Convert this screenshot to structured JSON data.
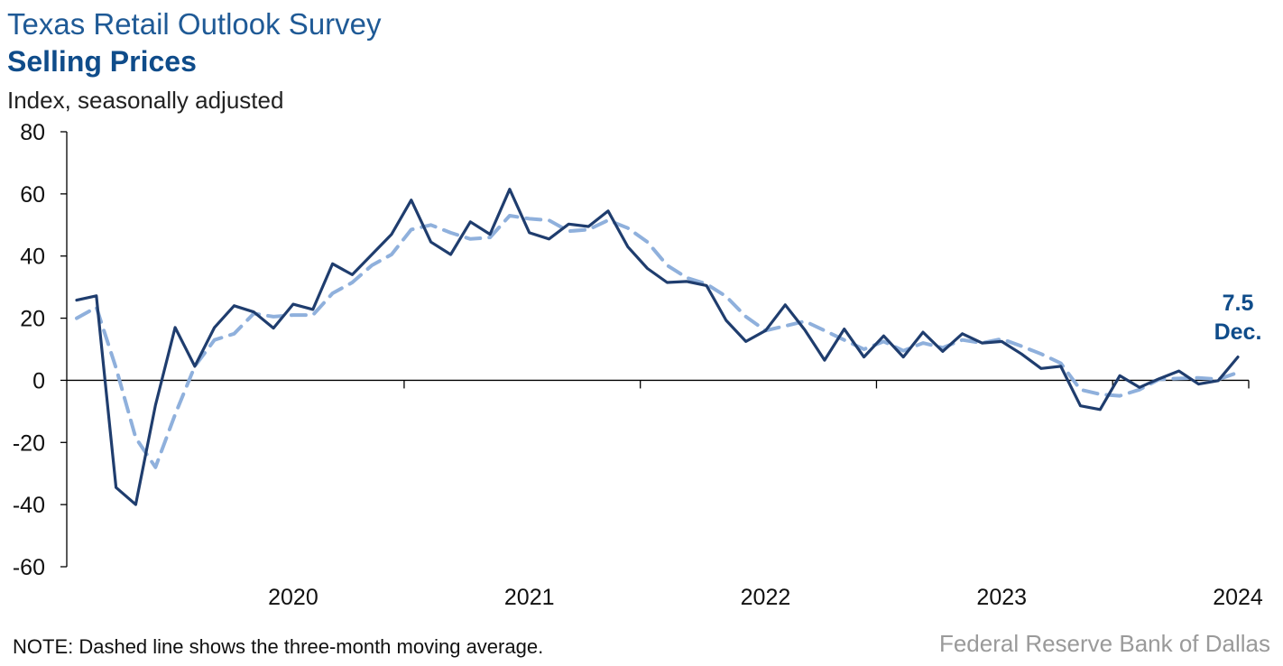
{
  "header": {
    "title": "Texas Retail Outlook Survey",
    "subtitle": "Selling Prices",
    "ylabel": "Index, seasonally adjusted"
  },
  "footer": {
    "note": "NOTE: Dashed line shows the three-month moving average.",
    "source": "Federal Reserve Bank of Dallas"
  },
  "chart_data": {
    "type": "line",
    "ylim": [
      -60,
      80
    ],
    "yticks": [
      "80",
      "60",
      "40",
      "20",
      "0",
      "-20",
      "-40",
      "-60"
    ],
    "ytick_values": [
      80,
      60,
      40,
      20,
      0,
      -20,
      -40,
      -60
    ],
    "xtick_labels": [
      "2020",
      "2021",
      "2022",
      "2023",
      "2024"
    ],
    "x_start": "2019-08",
    "x_end": "2024-12",
    "grid": false,
    "colors": {
      "index": "#1f3d6e",
      "avg": "#8fb0dc",
      "annotation": "#0f4c8a"
    },
    "series": [
      {
        "style": "solid",
        "values": [
          25.8,
          27.2,
          -34.5,
          -40.0,
          -8.0,
          17.0,
          4.5,
          17.0,
          24.0,
          22.0,
          16.8,
          24.5,
          22.8,
          37.5,
          34.0,
          40.5,
          47.0,
          58.0,
          44.5,
          40.5,
          51.0,
          47.0,
          61.5,
          47.5,
          45.5,
          50.3,
          49.5,
          54.5,
          43.0,
          36.0,
          31.5,
          31.8,
          30.5,
          19.3,
          12.5,
          16.0,
          24.3,
          16.2,
          6.5,
          16.5,
          7.5,
          14.3,
          7.5,
          15.5,
          9.3,
          15.0,
          12.0,
          12.5,
          8.5,
          3.8,
          4.5,
          -8.2,
          -9.4,
          1.5,
          -2.3,
          0.5,
          3.0,
          -1.2,
          -0.1,
          7.5
        ]
      },
      {
        "style": "dashed",
        "values": [
          20.0,
          23.5,
          4.0,
          -18.5,
          -28.0,
          -11.0,
          4.5,
          13.0,
          15.0,
          21.5,
          20.5,
          21.0,
          21.0,
          28.0,
          31.5,
          37.0,
          40.5,
          48.5,
          50.0,
          47.5,
          45.5,
          46.0,
          53.0,
          52.0,
          51.5,
          48.0,
          48.5,
          51.5,
          49.0,
          44.5,
          37.0,
          33.0,
          31.0,
          27.0,
          20.5,
          16.0,
          17.5,
          19.0,
          16.0,
          13.0,
          10.0,
          12.5,
          9.5,
          12.0,
          10.5,
          13.0,
          12.0,
          13.3,
          11.0,
          8.5,
          5.5,
          -3.0,
          -4.5,
          -5.0,
          -3.0,
          0.3,
          0.6,
          0.8,
          0.3,
          2.5
        ]
      }
    ],
    "annotation": {
      "value": "7.5",
      "label": "Dec."
    }
  }
}
